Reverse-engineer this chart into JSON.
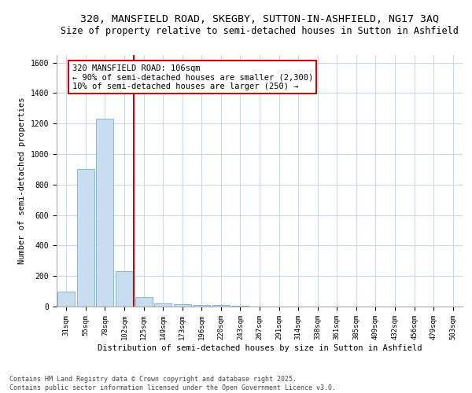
{
  "title1": "320, MANSFIELD ROAD, SKEGBY, SUTTON-IN-ASHFIELD, NG17 3AQ",
  "title2": "Size of property relative to semi-detached houses in Sutton in Ashfield",
  "xlabel": "Distribution of semi-detached houses by size in Sutton in Ashfield",
  "ylabel": "Number of semi-detached properties",
  "categories": [
    "31sqm",
    "55sqm",
    "78sqm",
    "102sqm",
    "125sqm",
    "149sqm",
    "173sqm",
    "196sqm",
    "220sqm",
    "243sqm",
    "267sqm",
    "291sqm",
    "314sqm",
    "338sqm",
    "361sqm",
    "385sqm",
    "409sqm",
    "432sqm",
    "456sqm",
    "479sqm",
    "503sqm"
  ],
  "values": [
    100,
    900,
    1230,
    230,
    60,
    20,
    15,
    10,
    10,
    5,
    2,
    1,
    1,
    0,
    0,
    0,
    0,
    0,
    0,
    0,
    0
  ],
  "bar_color": "#c8ddf0",
  "bar_edge_color": "#7aaecd",
  "highlight_line_color": "#cc0000",
  "annotation_box_text": "320 MANSFIELD ROAD: 106sqm\n← 90% of semi-detached houses are smaller (2,300)\n10% of semi-detached houses are larger (250) →",
  "annotation_box_color": "#cc0000",
  "annotation_box_bg": "#ffffff",
  "ylim": [
    0,
    1650
  ],
  "yticks": [
    0,
    200,
    400,
    600,
    800,
    1000,
    1200,
    1400,
    1600
  ],
  "background_color": "#ffffff",
  "grid_color": "#ccd8e8",
  "footer_text": "Contains HM Land Registry data © Crown copyright and database right 2025.\nContains public sector information licensed under the Open Government Licence v3.0.",
  "title_fontsize": 9.5,
  "subtitle_fontsize": 8.5,
  "axis_label_fontsize": 7.5,
  "tick_fontsize": 6.5,
  "footer_fontsize": 6.0,
  "annot_fontsize": 7.5
}
